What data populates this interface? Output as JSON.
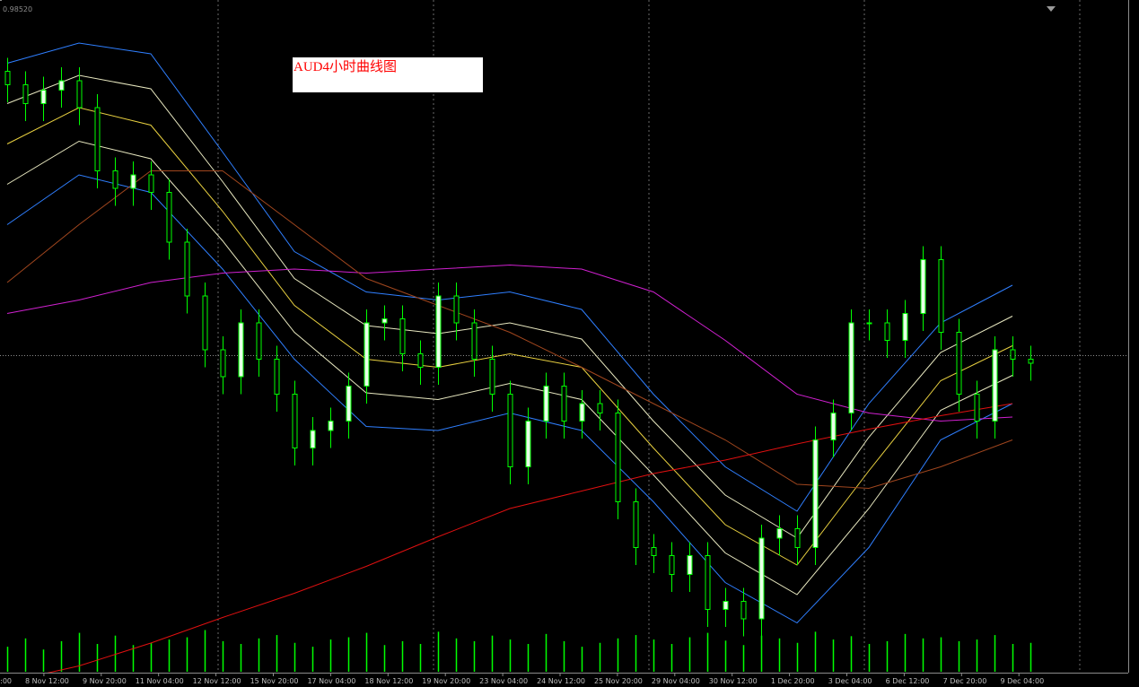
{
  "chart_data": {
    "type": "candlestick",
    "title": "AUD4小时曲线图",
    "background": "#000000",
    "ylim": [
      0.9352,
      0.9852
    ],
    "yticks": [
      {
        "value": 0.9852,
        "label": "0.98520"
      }
    ],
    "bid_line": 0.9588,
    "candle_color": "#00ff00",
    "bull_fill": "#e8ffe8",
    "bear_fill": "#000000",
    "candles": {
      "open": [
        0.9799,
        0.9789,
        0.9775,
        0.9785,
        0.9792,
        0.9772,
        0.9725,
        0.9712,
        0.9722,
        0.9709,
        0.9672,
        0.9632,
        0.9592,
        0.9572,
        0.9612,
        0.9585,
        0.9559,
        0.9519,
        0.9532,
        0.9539,
        0.9565,
        0.9612,
        0.9615,
        0.9589,
        0.9579,
        0.9632,
        0.9612,
        0.9585,
        0.9559,
        0.9505,
        0.9539,
        0.9565,
        0.9539,
        0.9552,
        0.9545,
        0.9479,
        0.9445,
        0.9439,
        0.9425,
        0.9439,
        0.9399,
        0.9405,
        0.9392,
        0.9452,
        0.9459,
        0.9445,
        0.9525,
        0.9545,
        0.9612,
        0.9612,
        0.9599,
        0.9619,
        0.9659,
        0.9605,
        0.9559,
        0.9539,
        0.9592,
        0.9585
      ],
      "high": [
        0.9809,
        0.9799,
        0.9795,
        0.9802,
        0.9802,
        0.9782,
        0.9735,
        0.9732,
        0.9732,
        0.9719,
        0.9682,
        0.9642,
        0.9602,
        0.9622,
        0.9622,
        0.9595,
        0.9569,
        0.9542,
        0.9549,
        0.9575,
        0.9622,
        0.9625,
        0.9625,
        0.9599,
        0.9642,
        0.9642,
        0.9622,
        0.9595,
        0.9569,
        0.9549,
        0.9575,
        0.9575,
        0.9562,
        0.9562,
        0.9555,
        0.9489,
        0.9455,
        0.9449,
        0.9449,
        0.9449,
        0.9415,
        0.9415,
        0.9462,
        0.9469,
        0.9469,
        0.9535,
        0.9555,
        0.9622,
        0.9622,
        0.9622,
        0.9629,
        0.9669,
        0.9669,
        0.9615,
        0.9569,
        0.9602,
        0.9602,
        0.9595
      ],
      "low": [
        0.9776,
        0.9762,
        0.9762,
        0.9772,
        0.9759,
        0.9712,
        0.9699,
        0.9699,
        0.9696,
        0.9659,
        0.9619,
        0.9579,
        0.9559,
        0.9559,
        0.9572,
        0.9546,
        0.9506,
        0.9506,
        0.9519,
        0.9526,
        0.9552,
        0.9599,
        0.9576,
        0.9566,
        0.9566,
        0.9599,
        0.9572,
        0.9546,
        0.9492,
        0.9492,
        0.9526,
        0.9526,
        0.9526,
        0.9532,
        0.9466,
        0.9432,
        0.9426,
        0.9412,
        0.9412,
        0.9386,
        0.9386,
        0.9379,
        0.9379,
        0.9439,
        0.9432,
        0.9432,
        0.9512,
        0.9532,
        0.9599,
        0.9586,
        0.9586,
        0.9606,
        0.9592,
        0.9546,
        0.9526,
        0.9526,
        0.9572,
        0.9569
      ],
      "close": [
        0.9789,
        0.9775,
        0.9785,
        0.9792,
        0.9772,
        0.9725,
        0.9712,
        0.9722,
        0.9709,
        0.9672,
        0.9632,
        0.9592,
        0.9572,
        0.9612,
        0.9585,
        0.9559,
        0.9519,
        0.9532,
        0.9539,
        0.9565,
        0.9612,
        0.9615,
        0.9589,
        0.9579,
        0.9632,
        0.9612,
        0.9585,
        0.9559,
        0.9505,
        0.9539,
        0.9565,
        0.9539,
        0.9552,
        0.9545,
        0.9479,
        0.9445,
        0.9439,
        0.9425,
        0.9439,
        0.9399,
        0.9405,
        0.9392,
        0.9452,
        0.9459,
        0.9445,
        0.9525,
        0.9545,
        0.9612,
        0.9612,
        0.9599,
        0.9619,
        0.9659,
        0.9605,
        0.9559,
        0.9539,
        0.9592,
        0.9585,
        0.9582
      ]
    },
    "series": [
      {
        "color": "#2f7fff",
        "values": [
          0.9805,
          0.982,
          0.9812,
          0.9739,
          0.9665,
          0.9635,
          0.9629,
          0.9635,
          0.9622,
          0.9559,
          0.9505,
          0.9472,
          0.9552,
          0.9612,
          0.964
        ]
      },
      {
        "color": "#e8e8c0",
        "values": [
          0.9775,
          0.9796,
          0.9786,
          0.9717,
          0.9645,
          0.961,
          0.9604,
          0.9612,
          0.96,
          0.9539,
          0.9484,
          0.9452,
          0.9527,
          0.959,
          0.9617
        ]
      },
      {
        "color": "#e8d040",
        "values": [
          0.9745,
          0.9772,
          0.9759,
          0.9695,
          0.9625,
          0.9585,
          0.9579,
          0.9589,
          0.9579,
          0.9519,
          0.9462,
          0.9432,
          0.9502,
          0.9569,
          0.9595
        ]
      },
      {
        "color": "#e8e8c0",
        "values": [
          0.9715,
          0.9747,
          0.9734,
          0.9673,
          0.9605,
          0.956,
          0.9555,
          0.9567,
          0.9555,
          0.9499,
          0.9441,
          0.941,
          0.9474,
          0.9547,
          0.9573
        ]
      },
      {
        "color": "#2f7fff",
        "values": [
          0.9685,
          0.9722,
          0.9709,
          0.9652,
          0.9585,
          0.9535,
          0.9532,
          0.9545,
          0.9532,
          0.9479,
          0.9419,
          0.9389,
          0.9445,
          0.9525,
          0.9552
        ]
      },
      {
        "color": "#d020d0",
        "values": [
          0.9619,
          0.9629,
          0.9642,
          0.9649,
          0.9652,
          0.9649,
          0.9652,
          0.9655,
          0.9652,
          0.9635,
          0.9599,
          0.9559,
          0.9545,
          0.9539,
          0.9542
        ]
      },
      {
        "color": "#a0461e",
        "values": [
          0.9642,
          0.9685,
          0.9725,
          0.9725,
          0.9685,
          0.9645,
          0.9625,
          0.9605,
          0.9579,
          0.9552,
          0.9525,
          0.9492,
          0.9489,
          0.9505,
          0.9525
        ]
      },
      {
        "color": "#e01010",
        "values": [
          0.9345,
          0.9357,
          0.9374,
          0.9393,
          0.9411,
          0.9431,
          0.9453,
          0.9474,
          0.9487,
          0.95,
          0.951,
          0.9522,
          0.9533,
          0.9543,
          0.9552
        ]
      }
    ],
    "volume": {
      "color": "#00ff00",
      "lim": [
        0,
        100
      ],
      "values": [
        45,
        60,
        40,
        55,
        70,
        50,
        65,
        48,
        52,
        58,
        62,
        75,
        55,
        50,
        60,
        66,
        52,
        45,
        58,
        62,
        70,
        48,
        55,
        50,
        72,
        60,
        55,
        65,
        58,
        50,
        68,
        55,
        45,
        52,
        60,
        66,
        58,
        50,
        62,
        70,
        56,
        48,
        65,
        60,
        52,
        72,
        58,
        64,
        50,
        55,
        68,
        60,
        62,
        55,
        58,
        66,
        50,
        52
      ]
    },
    "x_labels": [
      ":00",
      "8 Nov 12:00",
      "9 Nov 20:00",
      "11 Nov 04:00",
      "12 Nov 12:00",
      "15 Nov 20:00",
      "17 Nov 04:00",
      "18 Nov 12:00",
      "19 Nov 20:00",
      "23 Nov 04:00",
      "24 Nov 12:00",
      "25 Nov 20:00",
      "29 Nov 04:00",
      "30 Nov 12:00",
      "1 Dec 20:00",
      "3 Dec 04:00",
      "6 Dec 12:00",
      "7 Dec 20:00",
      "9 Dec 04:00"
    ]
  }
}
